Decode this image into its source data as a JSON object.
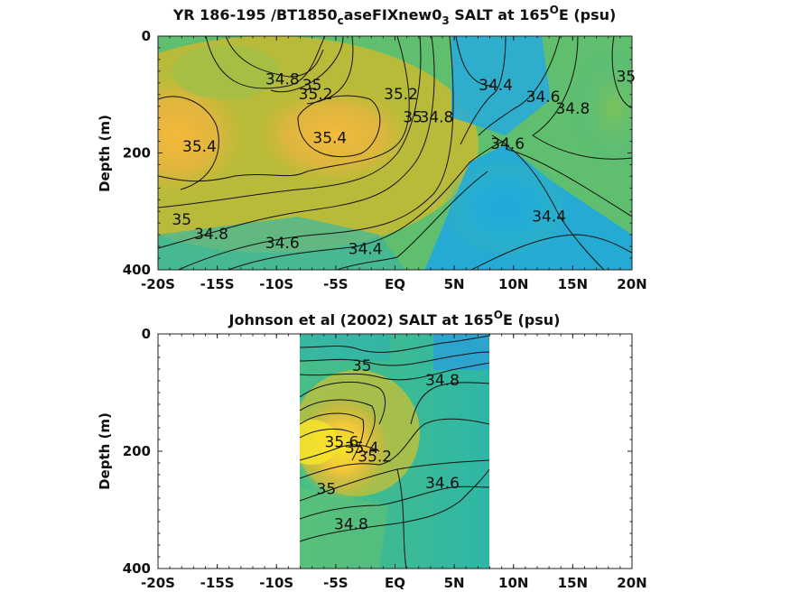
{
  "chart_data": [
    {
      "type": "contour",
      "title": "YR 186-195 /BT1850caseFIXnew03 SALT at 165°E (psu)",
      "title_parts": {
        "pre": "YR 186-195 /BT1850",
        "sub1": "c",
        "mid": "aseFIXnew0",
        "sub2": "3",
        "post1": " SALT at 165",
        "sup": "O",
        "post2": "E (psu)"
      },
      "xlabel": "",
      "ylabel": "Depth (m)",
      "x_ticks": [
        "-20S",
        "-15S",
        "-10S",
        "-5S",
        "EQ",
        "5N",
        "10N",
        "15N",
        "20N"
      ],
      "y_ticks": [
        "0",
        "200",
        "400"
      ],
      "xlim": [
        -20,
        20
      ],
      "ylim": [
        0,
        400
      ],
      "contour_labels": [
        {
          "text": "34.8",
          "x": -9.5,
          "y": 75
        },
        {
          "text": "35",
          "x": -7,
          "y": 85
        },
        {
          "text": "35.2",
          "x": -6.7,
          "y": 100
        },
        {
          "text": "35.4",
          "x": -16.5,
          "y": 190
        },
        {
          "text": "35.4",
          "x": -5.5,
          "y": 175
        },
        {
          "text": "35.2",
          "x": 0.5,
          "y": 100
        },
        {
          "text": "35",
          "x": 1.5,
          "y": 140
        },
        {
          "text": "34.8",
          "x": 3.5,
          "y": 140
        },
        {
          "text": "34.4",
          "x": 8.5,
          "y": 85
        },
        {
          "text": "34.6",
          "x": 12.5,
          "y": 105
        },
        {
          "text": "34.8",
          "x": 15,
          "y": 125
        },
        {
          "text": "35",
          "x": 19.5,
          "y": 70
        },
        {
          "text": "34.6",
          "x": 9.5,
          "y": 185
        },
        {
          "text": "34.4",
          "x": 13,
          "y": 310
        },
        {
          "text": "35",
          "x": -18,
          "y": 315
        },
        {
          "text": "34.8",
          "x": -15.5,
          "y": 340
        },
        {
          "text": "34.6",
          "x": -9.5,
          "y": 355
        },
        {
          "text": "34.4",
          "x": -2.5,
          "y": 365
        }
      ]
    },
    {
      "type": "contour",
      "title": "Johnson et al (2002) SALT at 165°E (psu)",
      "title_parts": {
        "pre": "Johnson et al (2002) SALT at 165",
        "sup": "O",
        "post": "E (psu)"
      },
      "xlabel": "",
      "ylabel": "Depth (m)",
      "x_ticks": [
        "-20S",
        "-15S",
        "-10S",
        "-5S",
        "EQ",
        "5N",
        "10N",
        "15N",
        "20N"
      ],
      "y_ticks": [
        "0",
        "200",
        "400"
      ],
      "xlim": [
        -20,
        20
      ],
      "ylim": [
        0,
        400
      ],
      "data_x_range": [
        -8,
        8
      ],
      "contour_labels": [
        {
          "text": "35",
          "x": -2.8,
          "y": 55
        },
        {
          "text": "34.8",
          "x": 4,
          "y": 80
        },
        {
          "text": "35.6",
          "x": -4.5,
          "y": 185
        },
        {
          "text": "35.4",
          "x": -2.8,
          "y": 195
        },
        {
          "text": "35.2",
          "x": -1.7,
          "y": 210
        },
        {
          "text": "35",
          "x": -5.8,
          "y": 265
        },
        {
          "text": "34.6",
          "x": 4,
          "y": 255
        },
        {
          "text": "34.8",
          "x": -3.7,
          "y": 325
        }
      ]
    }
  ]
}
